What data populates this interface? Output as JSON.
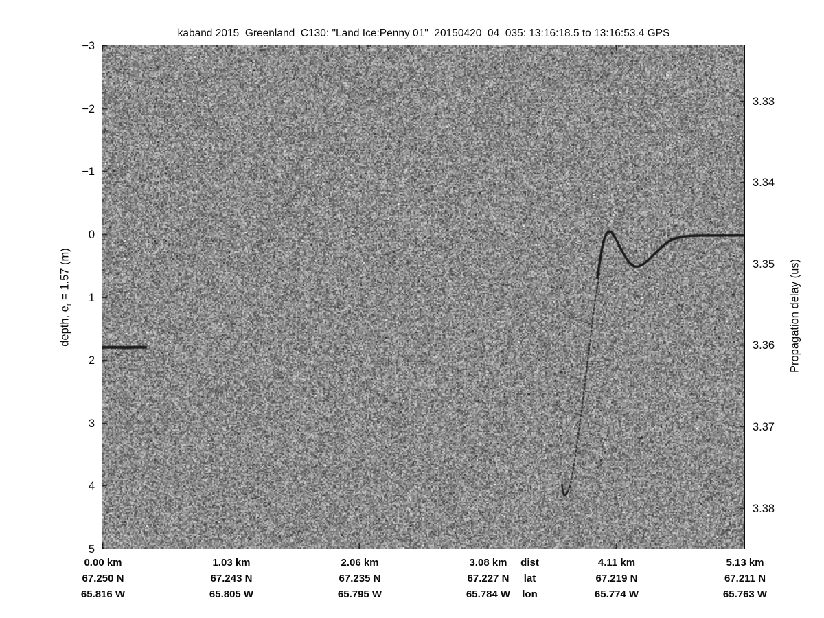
{
  "figure": {
    "colors": {
      "background": "#ffffff",
      "axis_line": "#0a0a0a",
      "text": "#0a0a0a",
      "noise_base": "#8c8c8c",
      "trace": "#141414"
    }
  },
  "chart_data": {
    "type": "heatmap",
    "title": "kaband 2015_Greenland_C130: \"Land Ice:Penny 01\"  20150420_04_035: 13:16:18.5 to 13:16:53.4 GPS",
    "description": "Ka-band radar echogram: grayscale speckle-noise image with a dark surface-return trace; flat shelf at left, diffraction hyperbola and surface line at right",
    "y_left": {
      "label_parts": {
        "pre": "depth, e",
        "sub": "r",
        "post": " = 1.57 (m)"
      },
      "ticks": [
        -3,
        -2,
        -1,
        0,
        1,
        2,
        3,
        4,
        5
      ],
      "range": [
        -3,
        5
      ]
    },
    "y_right": {
      "label": "Propagation delay (us)",
      "ticks": [
        3.33,
        3.34,
        3.35,
        3.36,
        3.37,
        3.38
      ],
      "range": [
        3.3232,
        3.385
      ]
    },
    "x_axis": {
      "row_labels": [
        "dist",
        "lat",
        "lon"
      ],
      "range_km": [
        0,
        5.13
      ],
      "ticks": [
        {
          "dist": "0.00 km",
          "lat": "67.250 N",
          "lon": "65.816 W"
        },
        {
          "dist": "1.03 km",
          "lat": "67.243 N",
          "lon": "65.805 W"
        },
        {
          "dist": "2.06 km",
          "lat": "67.235 N",
          "lon": "65.795 W"
        },
        {
          "dist": "3.08 km",
          "lat": "67.227 N",
          "lon": "65.784 W"
        },
        {
          "dist": "4.11 km",
          "lat": "67.219 N",
          "lon": "65.774 W"
        },
        {
          "dist": "5.13 km",
          "lat": "67.211 N",
          "lon": "65.763 W"
        }
      ]
    },
    "series": [
      {
        "name": "left-shelf",
        "style": "solid",
        "width": 4,
        "alpha": 0.92,
        "smooth": false,
        "points": [
          [
            0.0,
            1.8
          ],
          [
            0.346,
            1.8
          ]
        ]
      },
      {
        "name": "left-shelf-faint",
        "style": "solid",
        "width": 2,
        "alpha": 0.22,
        "smooth": false,
        "points": [
          [
            0.0,
            2.01
          ],
          [
            0.32,
            2.01
          ]
        ]
      },
      {
        "name": "surface-return-right",
        "style": "solid",
        "width": 3.5,
        "alpha": 0.95,
        "smooth": true,
        "points": [
          [
            3.955,
            0.7
          ],
          [
            3.985,
            0.3
          ],
          [
            4.015,
            0.03
          ],
          [
            4.045,
            -0.05
          ],
          [
            4.075,
            -0.02
          ],
          [
            4.11,
            0.1
          ],
          [
            4.16,
            0.3
          ],
          [
            4.21,
            0.46
          ],
          [
            4.26,
            0.53
          ],
          [
            4.31,
            0.5
          ],
          [
            4.37,
            0.4
          ],
          [
            4.44,
            0.26
          ],
          [
            4.51,
            0.13
          ],
          [
            4.58,
            0.06
          ],
          [
            4.66,
            0.03
          ],
          [
            4.78,
            0.02
          ],
          [
            5.13,
            0.02
          ]
        ]
      },
      {
        "name": "hyperbola-right-limb",
        "style": "dashed",
        "dash": [
          3,
          3.5
        ],
        "width": 2,
        "alpha": 0.85,
        "smooth": true,
        "points": [
          [
            3.975,
            0.62
          ],
          [
            3.94,
            1.0
          ],
          [
            3.912,
            1.45
          ],
          [
            3.88,
            2.0
          ],
          [
            3.845,
            2.55
          ],
          [
            3.81,
            3.1
          ],
          [
            3.775,
            3.6
          ],
          [
            3.74,
            4.0
          ],
          [
            3.71,
            4.14
          ],
          [
            3.698,
            4.16
          ]
        ]
      },
      {
        "name": "hyperbola-vertex-hook",
        "style": "solid",
        "width": 2.5,
        "alpha": 0.9,
        "smooth": true,
        "points": [
          [
            3.672,
            3.98
          ],
          [
            3.68,
            4.12
          ],
          [
            3.698,
            4.17
          ],
          [
            3.716,
            4.1
          ]
        ]
      },
      {
        "name": "hyperbola-left-limb-faint",
        "style": "dotted",
        "dash": [
          1.5,
          9
        ],
        "width": 1.5,
        "alpha": 0.5,
        "smooth": true,
        "points": [
          [
            3.575,
            -2.72
          ],
          [
            3.58,
            -1.5
          ],
          [
            3.585,
            -0.3
          ],
          [
            3.592,
            0.8
          ],
          [
            3.605,
            1.7
          ],
          [
            3.625,
            2.6
          ],
          [
            3.648,
            3.4
          ],
          [
            3.666,
            3.9
          ]
        ]
      },
      {
        "name": "faint-artifact-column-1",
        "style": "dotted",
        "dash": [
          2,
          10
        ],
        "width": 1.5,
        "alpha": 0.3,
        "smooth": false,
        "points": [
          [
            1.432,
            -2.37
          ],
          [
            1.44,
            -0.15
          ]
        ]
      },
      {
        "name": "faint-artifact-column-2",
        "style": "dotted",
        "dash": [
          2,
          12
        ],
        "width": 1.5,
        "alpha": 0.22,
        "smooth": false,
        "points": [
          [
            0.87,
            2.35
          ],
          [
            0.88,
            4.35
          ]
        ]
      }
    ]
  }
}
